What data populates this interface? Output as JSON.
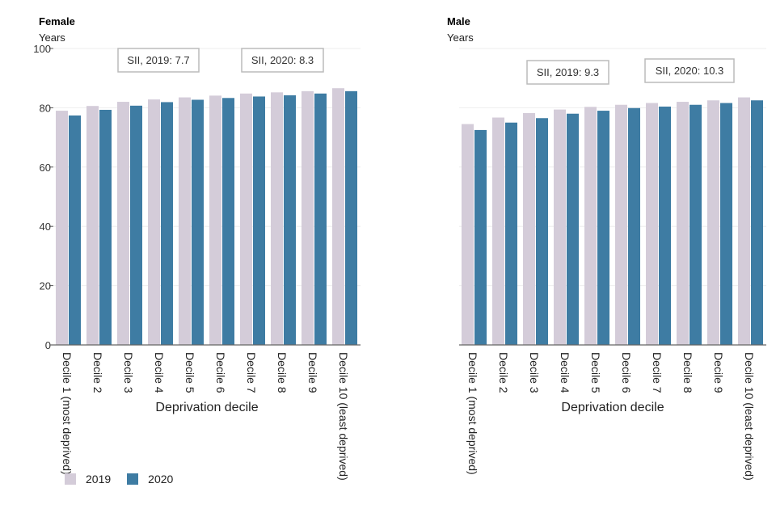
{
  "chart_data": [
    {
      "type": "bar",
      "title": "Female",
      "ylabel": "Years",
      "xlabel": "Deprivation decile",
      "ylim": [
        0,
        100
      ],
      "yticks": [
        0,
        20,
        40,
        60,
        80,
        100
      ],
      "categories": [
        "Decile 1 (most deprived)",
        "Decile 2",
        "Decile 3",
        "Decile 4",
        "Decile 5",
        "Decile 6",
        "Decile 7",
        "Decile 8",
        "Decile 9",
        "Decile 10 (least deprived)"
      ],
      "series": [
        {
          "name": "2019",
          "values": [
            79.0,
            80.6,
            82.0,
            82.8,
            83.5,
            84.1,
            84.8,
            85.2,
            85.6,
            86.6
          ]
        },
        {
          "name": "2020",
          "values": [
            77.4,
            79.3,
            80.7,
            81.9,
            82.7,
            83.3,
            83.8,
            84.2,
            84.8,
            85.6
          ]
        }
      ],
      "annotations": [
        "SII, 2019: 7.7",
        "SII, 2020: 8.3"
      ]
    },
    {
      "type": "bar",
      "title": "Male",
      "ylabel": "Years",
      "xlabel": "Deprivation decile",
      "ylim": [
        0,
        100
      ],
      "yticks": [],
      "categories": [
        "Decile 1 (most deprived)",
        "Decile 2",
        "Decile 3",
        "Decile 4",
        "Decile 5",
        "Decile 6",
        "Decile 7",
        "Decile 8",
        "Decile 9",
        "Decile 10 (least deprived)"
      ],
      "series": [
        {
          "name": "2019",
          "values": [
            74.5,
            76.7,
            78.2,
            79.4,
            80.3,
            81.0,
            81.6,
            82.0,
            82.5,
            83.5
          ]
        },
        {
          "name": "2020",
          "values": [
            72.5,
            75.0,
            76.5,
            78.0,
            79.0,
            79.9,
            80.4,
            81.0,
            81.6,
            82.5
          ]
        }
      ],
      "annotations": [
        "SII, 2019: 9.3",
        "SII, 2020: 10.3"
      ]
    }
  ],
  "legend": {
    "items": [
      {
        "label": "2019",
        "color": "#d4ccd9"
      },
      {
        "label": "2020",
        "color": "#3e7ca3"
      }
    ]
  }
}
